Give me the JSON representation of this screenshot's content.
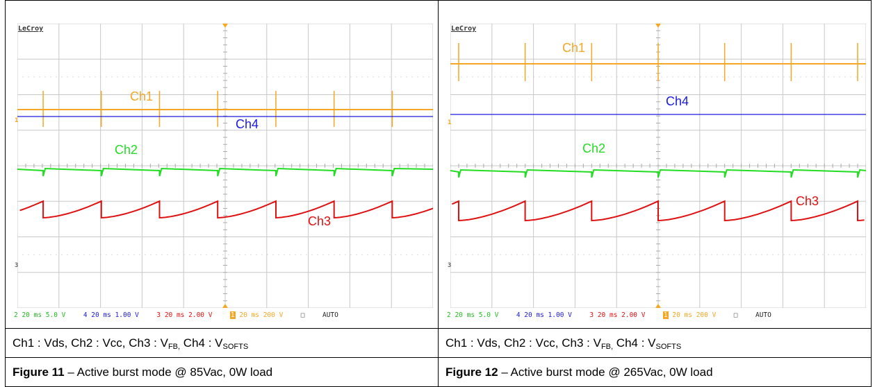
{
  "colors": {
    "ch1": "#f5a623",
    "ch2": "#22dd22",
    "ch3": "#e01010",
    "ch4": "#1a1ae0",
    "grid": "#c8c8c8",
    "dots": "#bdbdbd"
  },
  "panels": [
    {
      "logo": "LeCroy",
      "labels": {
        "ch1": "Ch1",
        "ch2": "Ch2",
        "ch3": "Ch3",
        "ch4": "Ch4"
      },
      "status": {
        "ch2": "2 20 ms 5.0 V",
        "ch4": "4 20 ms 1.00 V",
        "ch3": "3 20 ms 2.00 V",
        "ch1": "20 ms 200 V",
        "ch1_num": "1",
        "trig": "□",
        "mode": "AUTO"
      },
      "signal_caption": {
        "prefix": "Ch1 : Vds, Ch2 : Vcc, Ch3 : V",
        "fb_sub": "FB,",
        "mid": " Ch4 : V",
        "softs_sub": "SOFTS"
      },
      "figure_caption": {
        "bold": "Figure 11",
        "rest": " – Active burst mode @ 85Vac, 0W load"
      },
      "burst_period_divs": 1.4
    },
    {
      "logo": "LeCroy",
      "labels": {
        "ch1": "Ch1",
        "ch2": "Ch2",
        "ch3": "Ch3",
        "ch4": "Ch4"
      },
      "status": {
        "ch2": "2 20 ms 5.0 V",
        "ch4": "4 20 ms 1.00 V",
        "ch3": "3 20 ms 2.00 V",
        "ch1": "20 ms 200 V",
        "ch1_num": "1",
        "trig": "□",
        "mode": "AUTO"
      },
      "signal_caption": {
        "prefix": "Ch1 : Vds, Ch2 : Vcc, Ch3 : V",
        "fb_sub": "FB,",
        "mid": " Ch4 : V",
        "softs_sub": "SOFTS"
      },
      "figure_caption": {
        "bold": "Figure 12",
        "rest": " – Active burst mode @ 265Vac, 0W load"
      },
      "burst_period_divs": 1.6
    }
  ],
  "chart_data": [
    {
      "type": "line",
      "title": "Figure 11 – Active burst mode @ 85Vac, 0W load",
      "timebase": "20 ms",
      "series": [
        {
          "name": "Ch1",
          "scale": "200 V",
          "burst_period_divs": 1.4
        },
        {
          "name": "Ch2",
          "scale": "5.0 V",
          "burst_period_divs": 1.4
        },
        {
          "name": "Ch3",
          "scale": "2.00 V",
          "burst_period_divs": 1.4
        },
        {
          "name": "Ch4",
          "scale": "1.00 V"
        }
      ]
    },
    {
      "type": "line",
      "title": "Figure 12 – Active burst mode @ 265Vac, 0W load",
      "timebase": "20 ms",
      "series": [
        {
          "name": "Ch1",
          "scale": "200 V",
          "burst_period_divs": 1.6
        },
        {
          "name": "Ch2",
          "scale": "5.0 V",
          "burst_period_divs": 1.6
        },
        {
          "name": "Ch3",
          "scale": "2.00 V",
          "burst_period_divs": 1.6
        },
        {
          "name": "Ch4",
          "scale": "1.00 V"
        }
      ]
    }
  ]
}
